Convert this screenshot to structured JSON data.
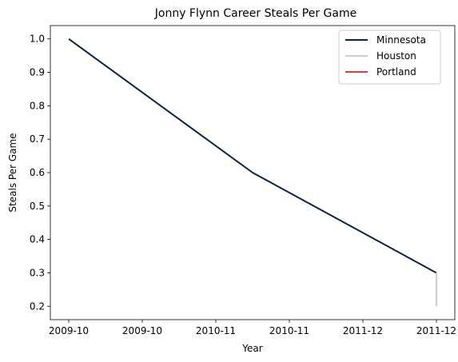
{
  "chart_data": {
    "type": "line",
    "title": "Jonny Flynn Career Steals Per Game",
    "xlabel": "Year",
    "ylabel": "Steals Per Game",
    "x_ticks": [
      "2009-10",
      "2009-10",
      "2010-11",
      "2010-11",
      "2011-12",
      "2011-12"
    ],
    "x_tick_positions": [
      0,
      0.5,
      1,
      1.5,
      2,
      2.5
    ],
    "xlim": [
      -0.125,
      2.625
    ],
    "ylim": [
      0.16,
      1.04
    ],
    "y_ticks": [
      0.2,
      0.3,
      0.4,
      0.5,
      0.6,
      0.7,
      0.8,
      0.9,
      1.0
    ],
    "y_tick_labels": [
      "0.2",
      "0.3",
      "0.4",
      "0.5",
      "0.6",
      "0.7",
      "0.8",
      "0.9",
      "1.0"
    ],
    "grid": false,
    "legend_position": "top-right",
    "series": [
      {
        "name": "Minnesota",
        "color": "#0c2340",
        "x": [
          0,
          1.25,
          2.5
        ],
        "y": [
          1.0,
          0.6,
          0.3
        ]
      },
      {
        "name": "Houston",
        "color": "#c4ced4",
        "x": [
          2.5,
          2.5
        ],
        "y": [
          0.3,
          0.2
        ]
      },
      {
        "name": "Portland",
        "color": "#e03a3e",
        "x": [],
        "y": []
      }
    ]
  }
}
